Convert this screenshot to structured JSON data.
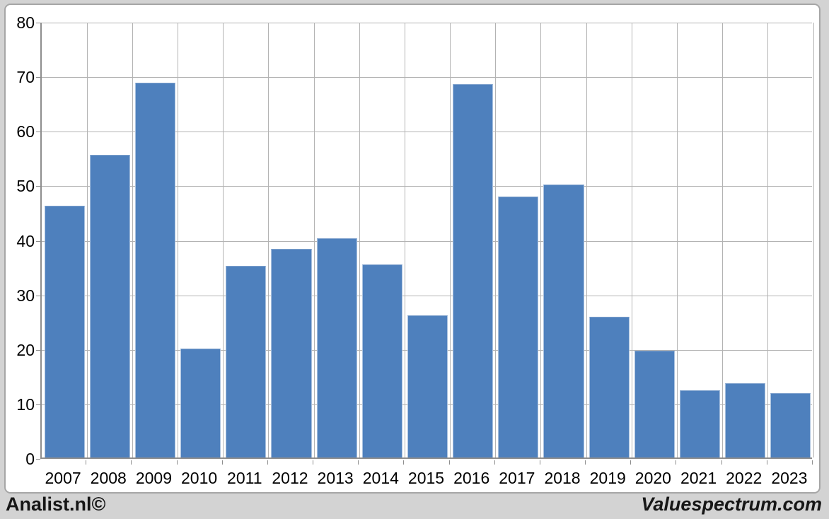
{
  "page": {
    "background_color": "#d3d3d3",
    "panel_background_color": "#ffffff",
    "panel_border_color": "#a6a6a6"
  },
  "footer": {
    "left_text": "Analist.nl©",
    "right_text": "Valuespectrum.com"
  },
  "chart_data": {
    "type": "bar",
    "title": "",
    "xlabel": "",
    "ylabel": "",
    "categories": [
      "2007",
      "2008",
      "2009",
      "2010",
      "2011",
      "2012",
      "2013",
      "2014",
      "2015",
      "2016",
      "2017",
      "2018",
      "2019",
      "2020",
      "2021",
      "2022",
      "2023"
    ],
    "values": [
      46.2,
      55.5,
      68.7,
      20.0,
      35.2,
      38.2,
      40.2,
      35.4,
      26.0,
      68.4,
      47.8,
      50.0,
      25.8,
      19.6,
      12.3,
      13.6,
      11.8
    ],
    "ylim": [
      0,
      80
    ],
    "yticks": [
      0,
      10,
      20,
      30,
      40,
      50,
      60,
      70,
      80
    ],
    "grid": true,
    "legend": false,
    "bar_color": "#4e80bd",
    "gridline_color": "#b3b3b3",
    "axis_color": "#8e8e8e",
    "tick_label_color": "#000000"
  }
}
